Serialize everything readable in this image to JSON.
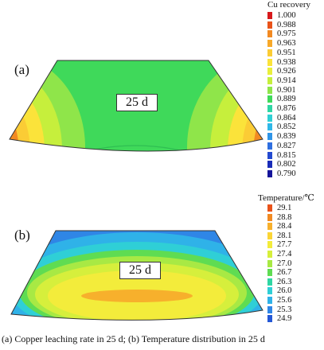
{
  "figure": {
    "caption": "(a)  Copper leaching rate in 25 d; (b) Temperature distribution in 25 d"
  },
  "panel_a": {
    "tag": "(a)",
    "inset_label": "25 d",
    "legend": {
      "title": "Cu recovery",
      "items": [
        {
          "value": "1.000",
          "color": "#d7191c"
        },
        {
          "value": "0.988",
          "color": "#e9531a"
        },
        {
          "value": "0.975",
          "color": "#f28a22"
        },
        {
          "value": "0.963",
          "color": "#f7a92a"
        },
        {
          "value": "0.951",
          "color": "#fbcc35"
        },
        {
          "value": "0.938",
          "color": "#fbe33a"
        },
        {
          "value": "0.926",
          "color": "#e9ef3b"
        },
        {
          "value": "0.914",
          "color": "#c6ef3c"
        },
        {
          "value": "0.901",
          "color": "#8fe54a"
        },
        {
          "value": "0.889",
          "color": "#3fd95a"
        },
        {
          "value": "0.876",
          "color": "#2fd6a3"
        },
        {
          "value": "0.864",
          "color": "#2fd0d4"
        },
        {
          "value": "0.852",
          "color": "#2fb8e8"
        },
        {
          "value": "0.839",
          "color": "#2f95e8"
        },
        {
          "value": "0.827",
          "color": "#2f6fe0"
        },
        {
          "value": "0.815",
          "color": "#244ad0"
        },
        {
          "value": "0.802",
          "color": "#1a2cb8"
        },
        {
          "value": "0.790",
          "color": "#15149a"
        }
      ]
    }
  },
  "panel_b": {
    "tag": "(b)",
    "inset_label": "25 d",
    "legend": {
      "title": "Temperature/℃",
      "items": [
        {
          "value": "29.1",
          "color": "#e9531a"
        },
        {
          "value": "28.8",
          "color": "#f28a22"
        },
        {
          "value": "28.4",
          "color": "#f7b02c"
        },
        {
          "value": "28.1",
          "color": "#fbd536"
        },
        {
          "value": "27.7",
          "color": "#f3ec3b"
        },
        {
          "value": "27.4",
          "color": "#d6ef3c"
        },
        {
          "value": "27.0",
          "color": "#a8e944"
        },
        {
          "value": "26.7",
          "color": "#5fdc52"
        },
        {
          "value": "26.3",
          "color": "#2fd6a3"
        },
        {
          "value": "26.0",
          "color": "#2fcfd6"
        },
        {
          "value": "25.6",
          "color": "#2fb2e8"
        },
        {
          "value": "25.3",
          "color": "#2f86e6"
        },
        {
          "value": "24.9",
          "color": "#2458d6"
        }
      ]
    }
  }
}
